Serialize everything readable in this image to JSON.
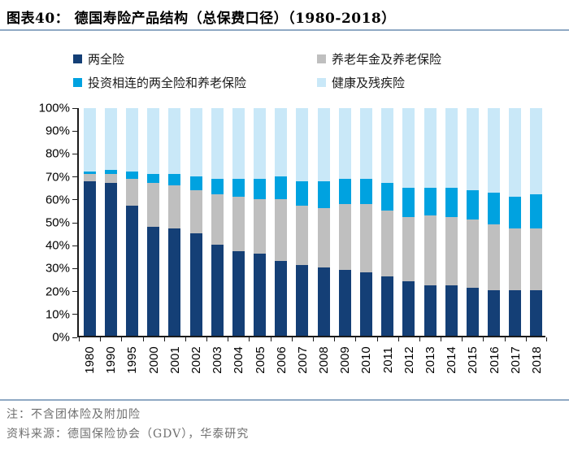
{
  "figure": {
    "title": "图表40：  德国寿险产品结构（总保费口径）（1980-2018）",
    "note": "注：不含团体险及附加险",
    "source": "资料来源：德国保险协会（GDV），华泰研究"
  },
  "colors": {
    "endowment": "#143F76",
    "annuity": "#BFBFBF",
    "unit_linked": "#00A2E0",
    "health_disability": "#C9E8F8",
    "divider": "#8FA9C4",
    "axis": "#1A1A1A",
    "note_text": "#6F6F6F"
  },
  "chart_data": {
    "type": "bar",
    "stacked": true,
    "percent_stacked": true,
    "title": "德国寿险产品结构（总保费口径）（1980-2018）",
    "categories": [
      "1980",
      "1990",
      "1995",
      "2000",
      "2001",
      "2002",
      "2003",
      "2004",
      "2005",
      "2006",
      "2007",
      "2008",
      "2009",
      "2010",
      "2011",
      "2012",
      "2013",
      "2014",
      "2015",
      "2016",
      "2017",
      "2018"
    ],
    "series": [
      {
        "name": "两全险",
        "color": "#143F76",
        "values": [
          68,
          67,
          57,
          48,
          47,
          45,
          40,
          37,
          36,
          33,
          31,
          30,
          29,
          28,
          26,
          24,
          22,
          22,
          21,
          20,
          20,
          20
        ]
      },
      {
        "name": "养老年金及养老保险",
        "color": "#BFBFBF",
        "values": [
          3,
          4,
          12,
          19,
          19,
          19,
          22,
          24,
          24,
          27,
          26,
          26,
          29,
          30,
          29,
          28,
          31,
          30,
          30,
          29,
          27,
          27
        ]
      },
      {
        "name": "投资相连的两全险和养老保险",
        "color": "#00A2E0",
        "values": [
          1,
          2,
          3,
          4,
          5,
          6,
          7,
          8,
          9,
          10,
          11,
          12,
          11,
          11,
          12,
          13,
          12,
          13,
          13,
          14,
          14,
          15
        ]
      },
      {
        "name": "健康及残疾险",
        "color": "#C9E8F8",
        "values": [
          28,
          27,
          28,
          29,
          29,
          30,
          31,
          31,
          31,
          30,
          32,
          32,
          31,
          31,
          33,
          35,
          35,
          35,
          36,
          37,
          39,
          38
        ]
      }
    ],
    "xlabel": "",
    "ylabel": "",
    "ylim": [
      0,
      100
    ],
    "y_ticks": [
      "0%",
      "10%",
      "20%",
      "30%",
      "40%",
      "50%",
      "60%",
      "70%",
      "80%",
      "90%",
      "100%"
    ],
    "x_tick_label_rotation": -90,
    "grid": false,
    "legend_position": "top",
    "legend_order_row_major": [
      "两全险",
      "养老年金及养老保险",
      "投资相连的两全险和养老保险",
      "健康及残疾险"
    ]
  }
}
